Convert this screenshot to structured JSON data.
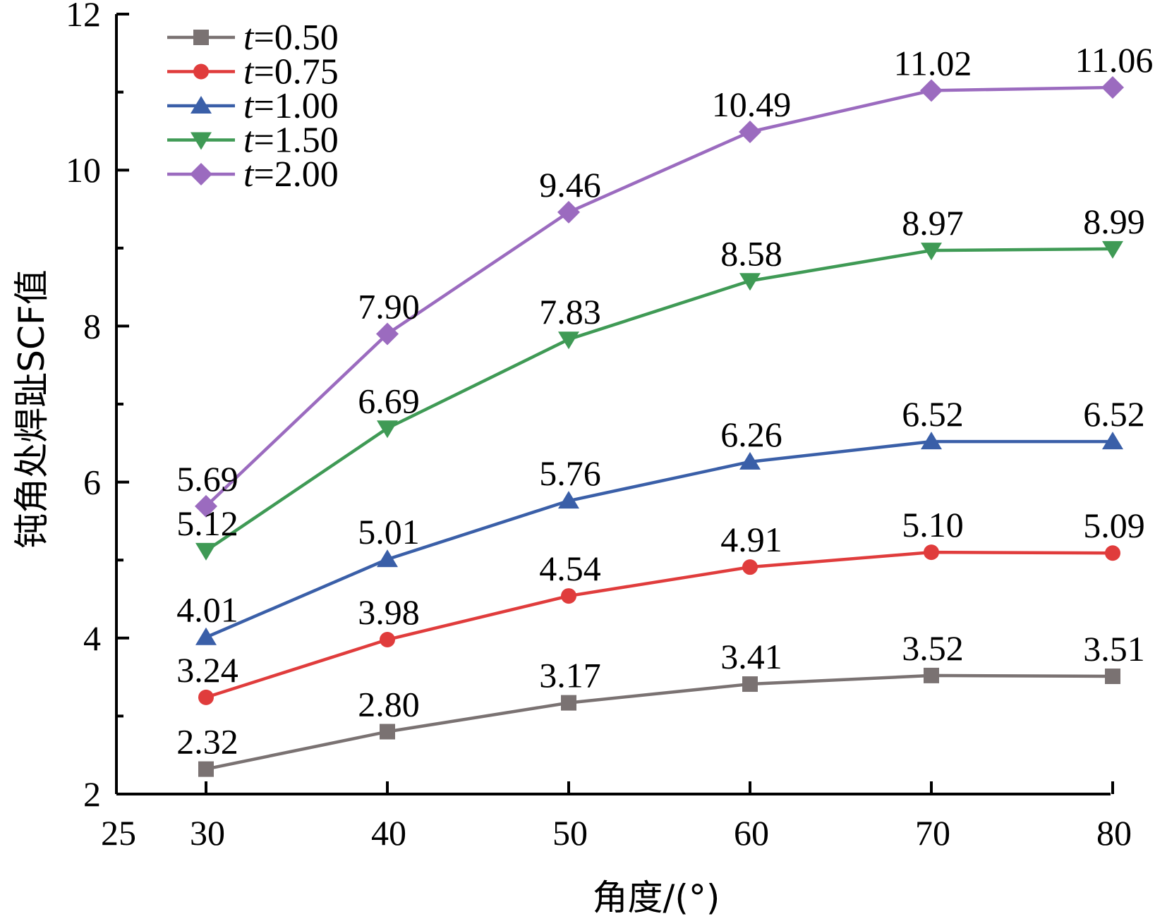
{
  "chart_data": {
    "type": "line",
    "xlabel": "角度/(°)",
    "ylabel": "钝角处焊趾SCF值",
    "xlim": [
      25,
      80
    ],
    "ylim": [
      2,
      12
    ],
    "xticks": [
      25,
      30,
      40,
      50,
      60,
      70,
      80
    ],
    "yticks": [
      2,
      4,
      6,
      8,
      10,
      12
    ],
    "x": [
      30,
      40,
      50,
      60,
      70,
      80
    ],
    "grid": false,
    "legend_position": "top-left",
    "series": [
      {
        "name": "t=0.50",
        "var": "t",
        "value_text": "=0.50",
        "color": "#7a7272",
        "marker": "square",
        "values": [
          2.32,
          2.8,
          3.17,
          3.41,
          3.52,
          3.51
        ],
        "labels": [
          "2.32",
          "2.80",
          "3.17",
          "3.41",
          "3.52",
          "3.51"
        ]
      },
      {
        "name": "t=0.75",
        "var": "t",
        "value_text": "=0.75",
        "color": "#e03c3c",
        "marker": "circle",
        "values": [
          3.24,
          3.98,
          4.54,
          4.91,
          5.1,
          5.09
        ],
        "labels": [
          "3.24",
          "3.98",
          "4.54",
          "4.91",
          "5.10",
          "5.09"
        ]
      },
      {
        "name": "t=1.00",
        "var": "t",
        "value_text": "=1.00",
        "color": "#3a5fa8",
        "marker": "triangle-up",
        "values": [
          4.01,
          5.01,
          5.76,
          6.26,
          6.52,
          6.52
        ],
        "labels": [
          "4.01",
          "5.01",
          "5.76",
          "6.26",
          "6.52",
          "6.52"
        ]
      },
      {
        "name": "t=1.50",
        "var": "t",
        "value_text": "=1.50",
        "color": "#3f9a55",
        "marker": "triangle-down",
        "values": [
          5.12,
          6.69,
          7.83,
          8.58,
          8.97,
          8.99
        ],
        "labels": [
          "5.12",
          "6.69",
          "7.83",
          "8.58",
          "8.97",
          "8.99"
        ]
      },
      {
        "name": "t=2.00",
        "var": "t",
        "value_text": "=2.00",
        "color": "#9b6bbf",
        "marker": "diamond",
        "values": [
          5.69,
          7.9,
          9.46,
          10.49,
          11.02,
          11.06
        ],
        "labels": [
          "5.69",
          "7.90",
          "9.46",
          "10.49",
          "11.02",
          "11.06"
        ]
      }
    ]
  }
}
